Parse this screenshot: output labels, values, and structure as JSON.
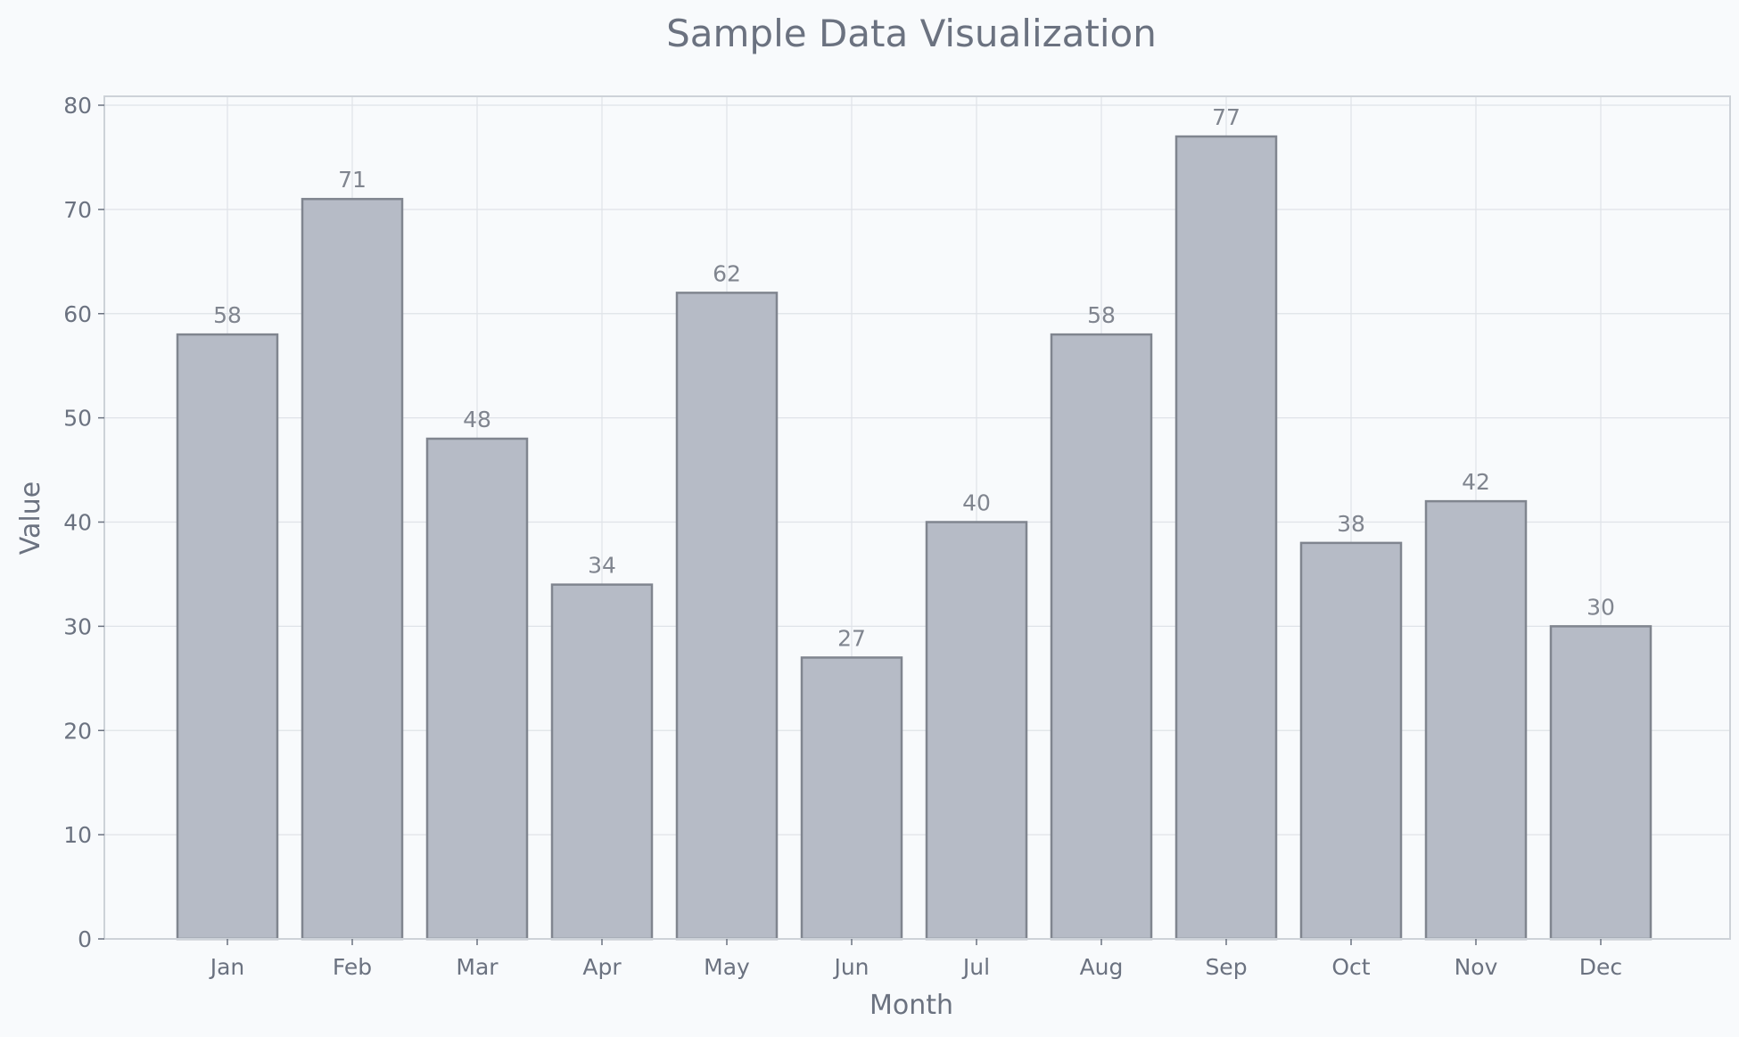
{
  "chart_data": {
    "type": "bar",
    "title": "Sample Data Visualization",
    "xlabel": "Month",
    "ylabel": "Value",
    "categories": [
      "Jan",
      "Feb",
      "Mar",
      "Apr",
      "May",
      "Jun",
      "Jul",
      "Aug",
      "Sep",
      "Oct",
      "Nov",
      "Dec"
    ],
    "values": [
      58,
      71,
      48,
      34,
      62,
      27,
      40,
      58,
      77,
      38,
      42,
      30
    ],
    "ylim": [
      0,
      81
    ],
    "yticks": [
      0,
      10,
      20,
      30,
      40,
      50,
      60,
      70,
      80
    ],
    "grid": true,
    "data_labels": true,
    "colors": {
      "background": "#f8fafc",
      "bar_fill": "#b6bbc6",
      "bar_edge": "#80858f",
      "text": "#6b7280",
      "grid": "#dfe3e8"
    }
  }
}
